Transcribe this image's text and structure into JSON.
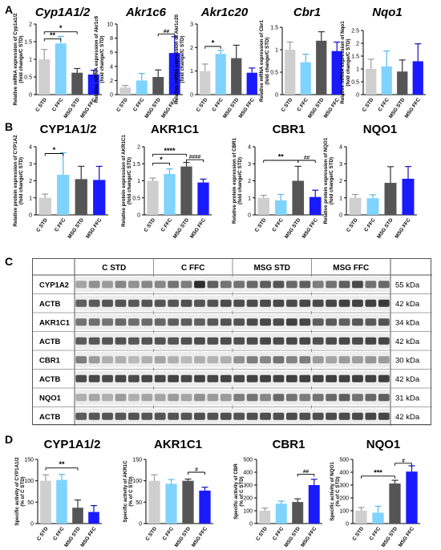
{
  "panels": [
    {
      "letter": "A"
    },
    {
      "letter": "B"
    },
    {
      "letter": "C"
    },
    {
      "letter": "D"
    }
  ],
  "colors": {
    "c_std": "#cfcfcf",
    "c_ffc": "#7fd3ff",
    "msg_std": "#555555",
    "msg_ffc": "#1a1aff",
    "err_c_std": "#9a9a9a",
    "err_c_ffc": "#55b8ee",
    "err_msg_std": "#333333",
    "err_msg_ffc": "#1010c0"
  },
  "chart_data": [
    {
      "id": "A1",
      "type": "bar",
      "title": "Cyp1A1/2",
      "title_style": "gene",
      "ylabel": "Relative mRNA expression of Cyp1a1/2\n(fold change/C STD)",
      "categories": [
        "C STD",
        "C FFC",
        "MSG STD",
        "MSG FFC"
      ],
      "values": [
        1.0,
        1.45,
        0.62,
        0.57
      ],
      "errors": [
        0.28,
        0.2,
        0.12,
        0.12
      ],
      "ylim": [
        0,
        2.0
      ],
      "yticks": [
        0,
        0.5,
        1.0,
        1.5,
        2.0
      ],
      "sig": [
        {
          "from": 0,
          "to": 1,
          "label": "**",
          "y": 1.58
        },
        {
          "from": 0,
          "to": 2,
          "label": "*",
          "y": 1.78
        }
      ]
    },
    {
      "id": "A2",
      "type": "bar",
      "title": "Akr1c6",
      "title_style": "gene",
      "ylabel": "Relative mRNA expression of Akr1c6\n(fold change/C STD)",
      "categories": [
        "C STD",
        "C FFC",
        "MSG STD",
        "MSG FFC"
      ],
      "values": [
        1.0,
        2.0,
        2.5,
        5.9
      ],
      "errors": [
        0.3,
        1.0,
        1.0,
        2.3
      ],
      "ylim": [
        0,
        10
      ],
      "yticks": [
        0,
        2,
        4,
        6,
        8,
        10
      ],
      "sig": [
        {
          "from": 2,
          "to": 3,
          "label": "##",
          "y": 8.6
        }
      ]
    },
    {
      "id": "A3",
      "type": "bar",
      "title": "Akr1c20",
      "title_style": "gene",
      "ylabel": "Relative mRNA expression of Akr1c20\n(fold change/C STD)",
      "categories": [
        "C STD",
        "C FFC",
        "MSG STD",
        "MSG FFC"
      ],
      "values": [
        1.0,
        1.73,
        1.55,
        0.93
      ],
      "errors": [
        0.3,
        0.15,
        0.55,
        0.2
      ],
      "ylim": [
        0,
        3
      ],
      "yticks": [
        0,
        1,
        2,
        3
      ],
      "sig": [
        {
          "from": 0,
          "to": 1,
          "label": "*",
          "y": 2.05
        }
      ]
    },
    {
      "id": "A4",
      "type": "bar",
      "title": "Cbr1",
      "title_style": "gene",
      "ylabel": "Relative mRNA expression of Cbr1\n(fold change/C STD)",
      "categories": [
        "C STD",
        "C FFC",
        "MSG STD",
        "MSG FFC"
      ],
      "values": [
        1.0,
        0.72,
        1.2,
        0.97
      ],
      "errors": [
        0.17,
        0.18,
        0.2,
        0.2
      ],
      "ylim": [
        0,
        1.5
      ],
      "yticks": [
        0,
        0.5,
        1.0,
        1.5
      ],
      "sig": []
    },
    {
      "id": "A5",
      "type": "bar",
      "title": "Nqo1",
      "title_style": "gene",
      "ylabel": "Relative mRNA expression of Nqo1\n(fold change/C STD)",
      "categories": [
        "C STD",
        "C FFC",
        "MSG STD",
        "MSG FFC"
      ],
      "values": [
        1.0,
        1.1,
        0.9,
        1.3
      ],
      "errors": [
        0.38,
        0.6,
        0.45,
        0.68
      ],
      "ylim": [
        0,
        2.5
      ],
      "yticks": [
        0,
        0.5,
        1.0,
        1.5,
        2.0,
        2.5
      ],
      "sig": []
    },
    {
      "id": "B1",
      "type": "bar",
      "title": "CYP1A1/2",
      "title_style": "protein",
      "ylabel": "Relative protein expression of CYP1A2\n(fold change/C STD)",
      "categories": [
        "C STD",
        "C FFC",
        "MSG STD",
        "MSG FFC"
      ],
      "values": [
        1.0,
        2.35,
        2.1,
        2.05
      ],
      "errors": [
        0.22,
        1.3,
        0.75,
        0.8
      ],
      "ylim": [
        0,
        4
      ],
      "yticks": [
        0,
        1,
        2,
        3,
        4
      ],
      "sig": [
        {
          "from": 0,
          "to": 1,
          "label": "*",
          "y": 3.6
        }
      ]
    },
    {
      "id": "B2",
      "type": "bar",
      "title": "AKR1C1",
      "title_style": "protein",
      "ylabel": "Relative protein expression of AKR1C1\n(fold change/C STD)",
      "categories": [
        "C STD",
        "C FFC",
        "MSG STD",
        "MSG FFC"
      ],
      "values": [
        1.0,
        1.2,
        1.42,
        0.95
      ],
      "errors": [
        0.08,
        0.15,
        0.12,
        0.1
      ],
      "ylim": [
        0,
        2.0
      ],
      "yticks": [
        0,
        0.5,
        1.0,
        1.5,
        2.0
      ],
      "sig": [
        {
          "from": 0,
          "to": 1,
          "label": "*",
          "y": 1.52
        },
        {
          "from": 0,
          "to": 2,
          "label": "****",
          "y": 1.78
        },
        {
          "from": 2,
          "to": 3,
          "label": "####",
          "y": 1.62
        }
      ]
    },
    {
      "id": "B3",
      "type": "bar",
      "title": "CBR1",
      "title_style": "protein",
      "ylabel": "Relative protein expression of CBR1\n(fold change/C STD)",
      "categories": [
        "C STD",
        "C FFC",
        "MSG STD",
        "MSG FFC"
      ],
      "values": [
        1.0,
        0.85,
        2.0,
        1.05
      ],
      "errors": [
        0.15,
        0.35,
        0.85,
        0.4
      ],
      "ylim": [
        0,
        4
      ],
      "yticks": [
        0,
        1,
        2,
        3,
        4
      ],
      "sig": [
        {
          "from": 0,
          "to": 2,
          "label": "**",
          "y": 3.2
        },
        {
          "from": 2,
          "to": 3,
          "label": "##",
          "y": 3.2
        }
      ]
    },
    {
      "id": "B4",
      "type": "bar",
      "title": "NQO1",
      "title_style": "protein",
      "ylabel": "Relative protein expression of NQO1\n(fold change/C STD)",
      "categories": [
        "C STD",
        "C FFC",
        "MSG STD",
        "MSG FFC"
      ],
      "values": [
        1.0,
        0.98,
        1.88,
        2.12
      ],
      "errors": [
        0.2,
        0.2,
        0.95,
        0.72
      ],
      "ylim": [
        0,
        4
      ],
      "yticks": [
        0,
        1,
        2,
        3,
        4
      ],
      "sig": []
    },
    {
      "id": "D1",
      "type": "bar",
      "title": "CYP1A1/2",
      "title_style": "protein",
      "ylabel": "Specific activity of CYP1A1/2\n(% of C STD)",
      "categories": [
        "C STD",
        "C FFC",
        "MSG STD",
        "MSG FFC"
      ],
      "values": [
        100,
        102,
        37,
        27
      ],
      "errors": [
        14,
        13,
        18,
        15
      ],
      "ylim": [
        0,
        150
      ],
      "yticks": [
        0,
        50,
        100,
        150
      ],
      "sig": [
        {
          "from": 0,
          "to": 2,
          "label": "**",
          "y": 130
        }
      ]
    },
    {
      "id": "D2",
      "type": "bar",
      "title": "AKR1C1",
      "title_style": "protein",
      "ylabel": "Specific activity of AKR1C\n(% of C STD)",
      "categories": [
        "C STD",
        "C FFC",
        "MSG STD",
        "MSG FFC"
      ],
      "values": [
        100,
        93,
        100,
        77
      ],
      "errors": [
        14,
        10,
        4,
        8
      ],
      "ylim": [
        0,
        150
      ],
      "yticks": [
        0,
        50,
        100,
        150
      ],
      "sig": [
        {
          "from": 2,
          "to": 3,
          "label": "#",
          "y": 120
        }
      ]
    },
    {
      "id": "D3",
      "type": "bar",
      "title": "CBR1",
      "title_style": "protein",
      "ylabel": "Specific activity of CBR\n(% of C STD)",
      "categories": [
        "C STD",
        "C FFC",
        "MSG STD",
        "MSG FFC"
      ],
      "values": [
        100,
        155,
        168,
        300
      ],
      "errors": [
        20,
        20,
        25,
        45
      ],
      "ylim": [
        0,
        500
      ],
      "yticks": [
        0,
        100,
        200,
        300,
        400,
        500
      ],
      "sig": [
        {
          "from": 2,
          "to": 3,
          "label": "##",
          "y": 385
        }
      ]
    },
    {
      "id": "D4",
      "type": "bar",
      "title": "NQO1",
      "title_style": "protein",
      "ylabel": "Specific activity of NQO1\n(% of C STD)",
      "categories": [
        "C STD",
        "C FFC",
        "MSG STD",
        "MSG FFC"
      ],
      "values": [
        100,
        85,
        312,
        405
      ],
      "errors": [
        25,
        50,
        25,
        45
      ],
      "ylim": [
        0,
        500
      ],
      "yticks": [
        0,
        100,
        200,
        300,
        400,
        500
      ],
      "sig": [
        {
          "from": 0,
          "to": 2,
          "label": "***",
          "y": 370
        },
        {
          "from": 2,
          "to": 3,
          "label": "#",
          "y": 470
        }
      ]
    }
  ],
  "blot": {
    "groups": [
      "C STD",
      "C FFC",
      "MSG STD",
      "MSG FFC"
    ],
    "rows": [
      {
        "label": "CYP1A2",
        "kda": "55 kDa"
      },
      {
        "label": "ACTB",
        "kda": "42 kDa"
      },
      {
        "label": "AKR1C1",
        "kda": "34 kDa"
      },
      {
        "label": "ACTB",
        "kda": "42 kDa"
      },
      {
        "label": "CBR1",
        "kda": "30 kDa"
      },
      {
        "label": "ACTB",
        "kda": "42 kDa"
      },
      {
        "label": "NQO1",
        "kda": "31 kDa"
      },
      {
        "label": "ACTB",
        "kda": "42 kDa"
      }
    ],
    "lane_intensity": [
      [
        0.35,
        0.45,
        0.4,
        0.5,
        0.45,
        0.5,
        0.5,
        0.6,
        0.55,
        0.95,
        0.7,
        0.6,
        0.6,
        0.65,
        0.7,
        0.75,
        0.65,
        0.7,
        0.55,
        0.6,
        0.7,
        0.8,
        0.6,
        0.65
      ],
      [
        0.7,
        0.72,
        0.75,
        0.75,
        0.73,
        0.75,
        0.75,
        0.75,
        0.78,
        0.75,
        0.76,
        0.8,
        0.78,
        0.8,
        0.8,
        0.82,
        0.8,
        0.82,
        0.8,
        0.82,
        0.85,
        0.84,
        0.85,
        0.88
      ],
      [
        0.6,
        0.62,
        0.6,
        0.65,
        0.62,
        0.64,
        0.66,
        0.7,
        0.72,
        0.7,
        0.74,
        0.76,
        0.75,
        0.8,
        0.82,
        0.8,
        0.85,
        0.82,
        0.7,
        0.72,
        0.7,
        0.74,
        0.72,
        0.76
      ],
      [
        0.72,
        0.74,
        0.75,
        0.76,
        0.74,
        0.76,
        0.76,
        0.75,
        0.78,
        0.8,
        0.78,
        0.8,
        0.78,
        0.8,
        0.82,
        0.8,
        0.82,
        0.82,
        0.78,
        0.8,
        0.82,
        0.8,
        0.82,
        0.84
      ],
      [
        0.55,
        0.4,
        0.3,
        0.3,
        0.25,
        0.3,
        0.35,
        0.3,
        0.25,
        0.3,
        0.28,
        0.3,
        0.45,
        0.55,
        0.5,
        0.6,
        0.52,
        0.55,
        0.4,
        0.35,
        0.4,
        0.38,
        0.42,
        0.4
      ],
      [
        0.8,
        0.82,
        0.8,
        0.82,
        0.8,
        0.82,
        0.82,
        0.84,
        0.82,
        0.84,
        0.82,
        0.84,
        0.82,
        0.84,
        0.85,
        0.84,
        0.86,
        0.85,
        0.84,
        0.86,
        0.85,
        0.86,
        0.85,
        0.86
      ],
      [
        0.3,
        0.35,
        0.3,
        0.4,
        0.3,
        0.35,
        0.35,
        0.4,
        0.35,
        0.45,
        0.4,
        0.4,
        0.55,
        0.6,
        0.5,
        0.65,
        0.6,
        0.55,
        0.6,
        0.65,
        0.7,
        0.6,
        0.65,
        0.7
      ],
      [
        0.72,
        0.74,
        0.75,
        0.74,
        0.76,
        0.75,
        0.75,
        0.76,
        0.75,
        0.78,
        0.76,
        0.78,
        0.76,
        0.78,
        0.78,
        0.78,
        0.8,
        0.78,
        0.78,
        0.8,
        0.8,
        0.8,
        0.82,
        0.82
      ]
    ]
  }
}
